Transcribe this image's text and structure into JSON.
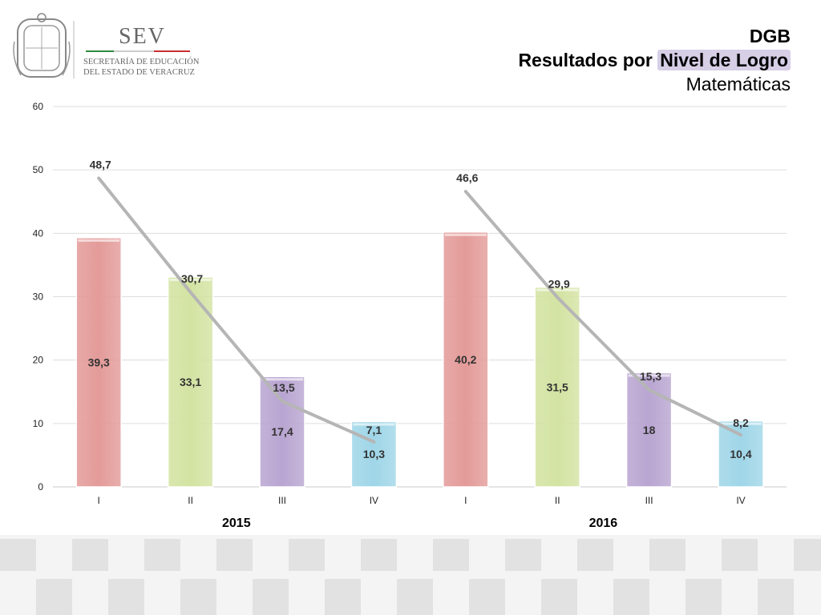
{
  "header": {
    "logo_text": "SEV",
    "logo_subtitle_line1": "SECRETARÍA DE EDUCACIÓN",
    "logo_subtitle_line2": "DEL ESTADO DE VERACRUZ",
    "title_line1": "DGB",
    "title_line2_prefix": "Resultados por ",
    "title_line2_highlight": "Nivel de Logro",
    "title_line3": "Matemáticas"
  },
  "colors": {
    "I": "#e39b99",
    "II": "#d3e3a2",
    "III": "#b9a5d1",
    "IV": "#9fd6e8",
    "line": "#b5b5b5",
    "grid": "#dddddd"
  },
  "chart_data": {
    "type": "bar",
    "ylim": [
      0,
      60
    ],
    "yticks": [
      "0",
      "10",
      "20",
      "30",
      "40",
      "50",
      "60"
    ],
    "grid": true,
    "groups": [
      {
        "label": "2015",
        "categories": [
          "I",
          "II",
          "III",
          "IV"
        ],
        "bar_values": [
          39.3,
          33.1,
          17.4,
          10.3
        ],
        "bar_labels": [
          "39,3",
          "33,1",
          "17,4",
          "10,3"
        ],
        "line_values": [
          48.7,
          30.7,
          13.5,
          7.1
        ],
        "line_labels": [
          "48,7",
          "30,7",
          "13,5",
          "7,1"
        ]
      },
      {
        "label": "2016",
        "categories": [
          "I",
          "II",
          "III",
          "IV"
        ],
        "bar_values": [
          40.2,
          31.5,
          18,
          10.4
        ],
        "bar_labels": [
          "40,2",
          "31,5",
          "18",
          "10,4"
        ],
        "line_values": [
          46.6,
          29.9,
          15.3,
          8.2
        ],
        "line_labels": [
          "46,6",
          "29,9",
          "15,3",
          "8,2"
        ]
      }
    ]
  }
}
